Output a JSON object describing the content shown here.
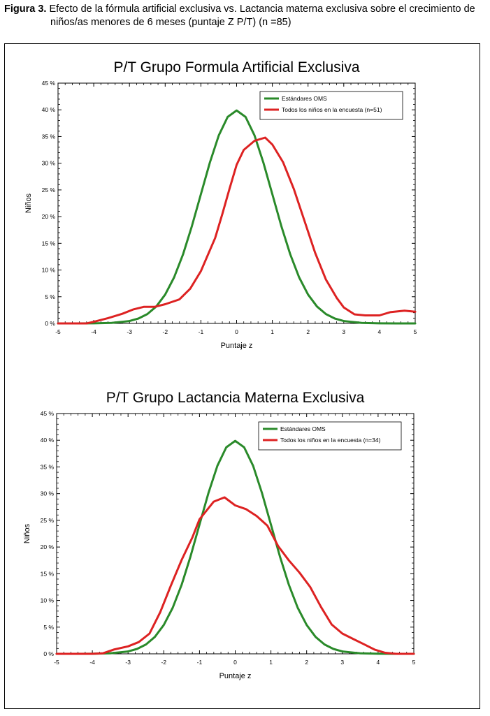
{
  "figure": {
    "label": "Figura 3.",
    "caption_line1": "Efecto de la fórmula artificial exclusiva vs. Lactancia materna exclusiva sobre el crecimiento de",
    "caption_line2": "niños/as menores de 6 meses (puntaje Z P/T)  (n =85)"
  },
  "colors": {
    "who": "#2a8a2a",
    "survey": "#dd2222",
    "axis": "#000000",
    "grid": "#000000"
  },
  "chart_data": [
    {
      "type": "line",
      "title": "P/T Grupo Formula Artificial Exclusiva",
      "xlabel": "Puntaje z",
      "ylabel": "Niños",
      "xlim": [
        -5,
        5
      ],
      "ylim": [
        0,
        45
      ],
      "xticks": [
        "-5",
        "-4",
        "-3",
        "-2",
        "-1",
        "0",
        "1",
        "2",
        "3",
        "4",
        "5"
      ],
      "yticks": [
        "0 %",
        "5 %",
        "10 %",
        "15 %",
        "20 %",
        "25 %",
        "30 %",
        "35 %",
        "40 %",
        "45 %"
      ],
      "grid": false,
      "legend_position": "top-right",
      "series": [
        {
          "name": "Estándares OMS",
          "color": "#2a8a2a",
          "x": [
            -5,
            -4.5,
            -4,
            -3.5,
            -3,
            -2.75,
            -2.5,
            -2.25,
            -2,
            -1.75,
            -1.5,
            -1.25,
            -1,
            -0.75,
            -0.5,
            -0.25,
            0,
            0.25,
            0.5,
            0.75,
            1,
            1.25,
            1.5,
            1.75,
            2,
            2.25,
            2.5,
            2.75,
            3,
            3.5,
            4,
            4.5,
            5
          ],
          "y": [
            0,
            0,
            0.01,
            0.09,
            0.44,
            0.91,
            1.75,
            3.17,
            5.4,
            8.63,
            12.95,
            18.26,
            24.2,
            30.11,
            35.21,
            38.67,
            39.89,
            38.67,
            35.21,
            30.11,
            24.2,
            18.26,
            12.95,
            8.63,
            5.4,
            3.17,
            1.75,
            0.91,
            0.44,
            0.09,
            0.01,
            0,
            0
          ]
        },
        {
          "name": "Todos los niños en la encuesta (n=51)",
          "color": "#dd2222",
          "x": [
            -5,
            -4.5,
            -4.2,
            -4,
            -3.6,
            -3.2,
            -2.9,
            -2.6,
            -2.3,
            -2,
            -1.6,
            -1.3,
            -1,
            -0.6,
            -0.4,
            -0.2,
            0,
            0.2,
            0.5,
            0.8,
            1,
            1.3,
            1.6,
            1.9,
            2.2,
            2.5,
            2.8,
            3,
            3.3,
            3.6,
            4,
            4.3,
            4.7,
            5
          ],
          "y": [
            0,
            0,
            0,
            0.3,
            1,
            1.8,
            2.6,
            3.1,
            3.1,
            3.6,
            4.5,
            6.5,
            9.8,
            16,
            20.5,
            25.2,
            29.7,
            32.5,
            34.2,
            34.8,
            33.5,
            30.2,
            25.2,
            19.2,
            13.2,
            8.2,
            4.8,
            3,
            1.7,
            1.5,
            1.5,
            2.1,
            2.4,
            2.2
          ]
        }
      ]
    },
    {
      "type": "line",
      "title": "P/T Grupo Lactancia Materna Exclusiva",
      "xlabel": "Puntaje z",
      "ylabel": "Niños",
      "xlim": [
        -5,
        5
      ],
      "ylim": [
        0,
        45
      ],
      "xticks": [
        "-5",
        "-4",
        "-3",
        "-2",
        "-1",
        "0",
        "1",
        "2",
        "3",
        "4",
        "5"
      ],
      "yticks": [
        "0 %",
        "5 %",
        "10 %",
        "15 %",
        "20 %",
        "25 %",
        "30 %",
        "35 %",
        "40 %",
        "45 %"
      ],
      "grid": false,
      "legend_position": "top-right",
      "series": [
        {
          "name": "Estándares OMS",
          "color": "#2a8a2a",
          "x": [
            -5,
            -4.5,
            -4,
            -3.5,
            -3,
            -2.75,
            -2.5,
            -2.25,
            -2,
            -1.75,
            -1.5,
            -1.25,
            -1,
            -0.75,
            -0.5,
            -0.25,
            0,
            0.25,
            0.5,
            0.75,
            1,
            1.25,
            1.5,
            1.75,
            2,
            2.25,
            2.5,
            2.75,
            3,
            3.5,
            4,
            4.5,
            5
          ],
          "y": [
            0,
            0,
            0.01,
            0.09,
            0.44,
            0.91,
            1.75,
            3.17,
            5.4,
            8.63,
            12.95,
            18.26,
            24.2,
            30.11,
            35.21,
            38.67,
            39.89,
            38.67,
            35.21,
            30.11,
            24.2,
            18.26,
            12.95,
            8.63,
            5.4,
            3.17,
            1.75,
            0.91,
            0.44,
            0.09,
            0.01,
            0,
            0
          ]
        },
        {
          "name": "Todos los niños en la encuesta (n=34)",
          "color": "#dd2222",
          "x": [
            -5,
            -4.5,
            -4,
            -3.7,
            -3.4,
            -3,
            -2.7,
            -2.4,
            -2.1,
            -1.8,
            -1.5,
            -1.2,
            -1,
            -0.6,
            -0.3,
            0,
            0.3,
            0.6,
            0.9,
            1.2,
            1.5,
            1.8,
            2.1,
            2.4,
            2.7,
            3,
            3.3,
            3.6,
            3.9,
            4.2,
            4.5,
            5
          ],
          "y": [
            0,
            0,
            0,
            0.1,
            0.8,
            1.4,
            2.2,
            3.8,
            7.8,
            12.8,
            17.6,
            21.8,
            25.2,
            28.5,
            29.3,
            27.8,
            27.1,
            25.8,
            24,
            20.2,
            17.5,
            15.2,
            12.5,
            8.8,
            5.5,
            3.8,
            2.8,
            1.8,
            0.8,
            0.2,
            0,
            0
          ]
        }
      ]
    }
  ]
}
